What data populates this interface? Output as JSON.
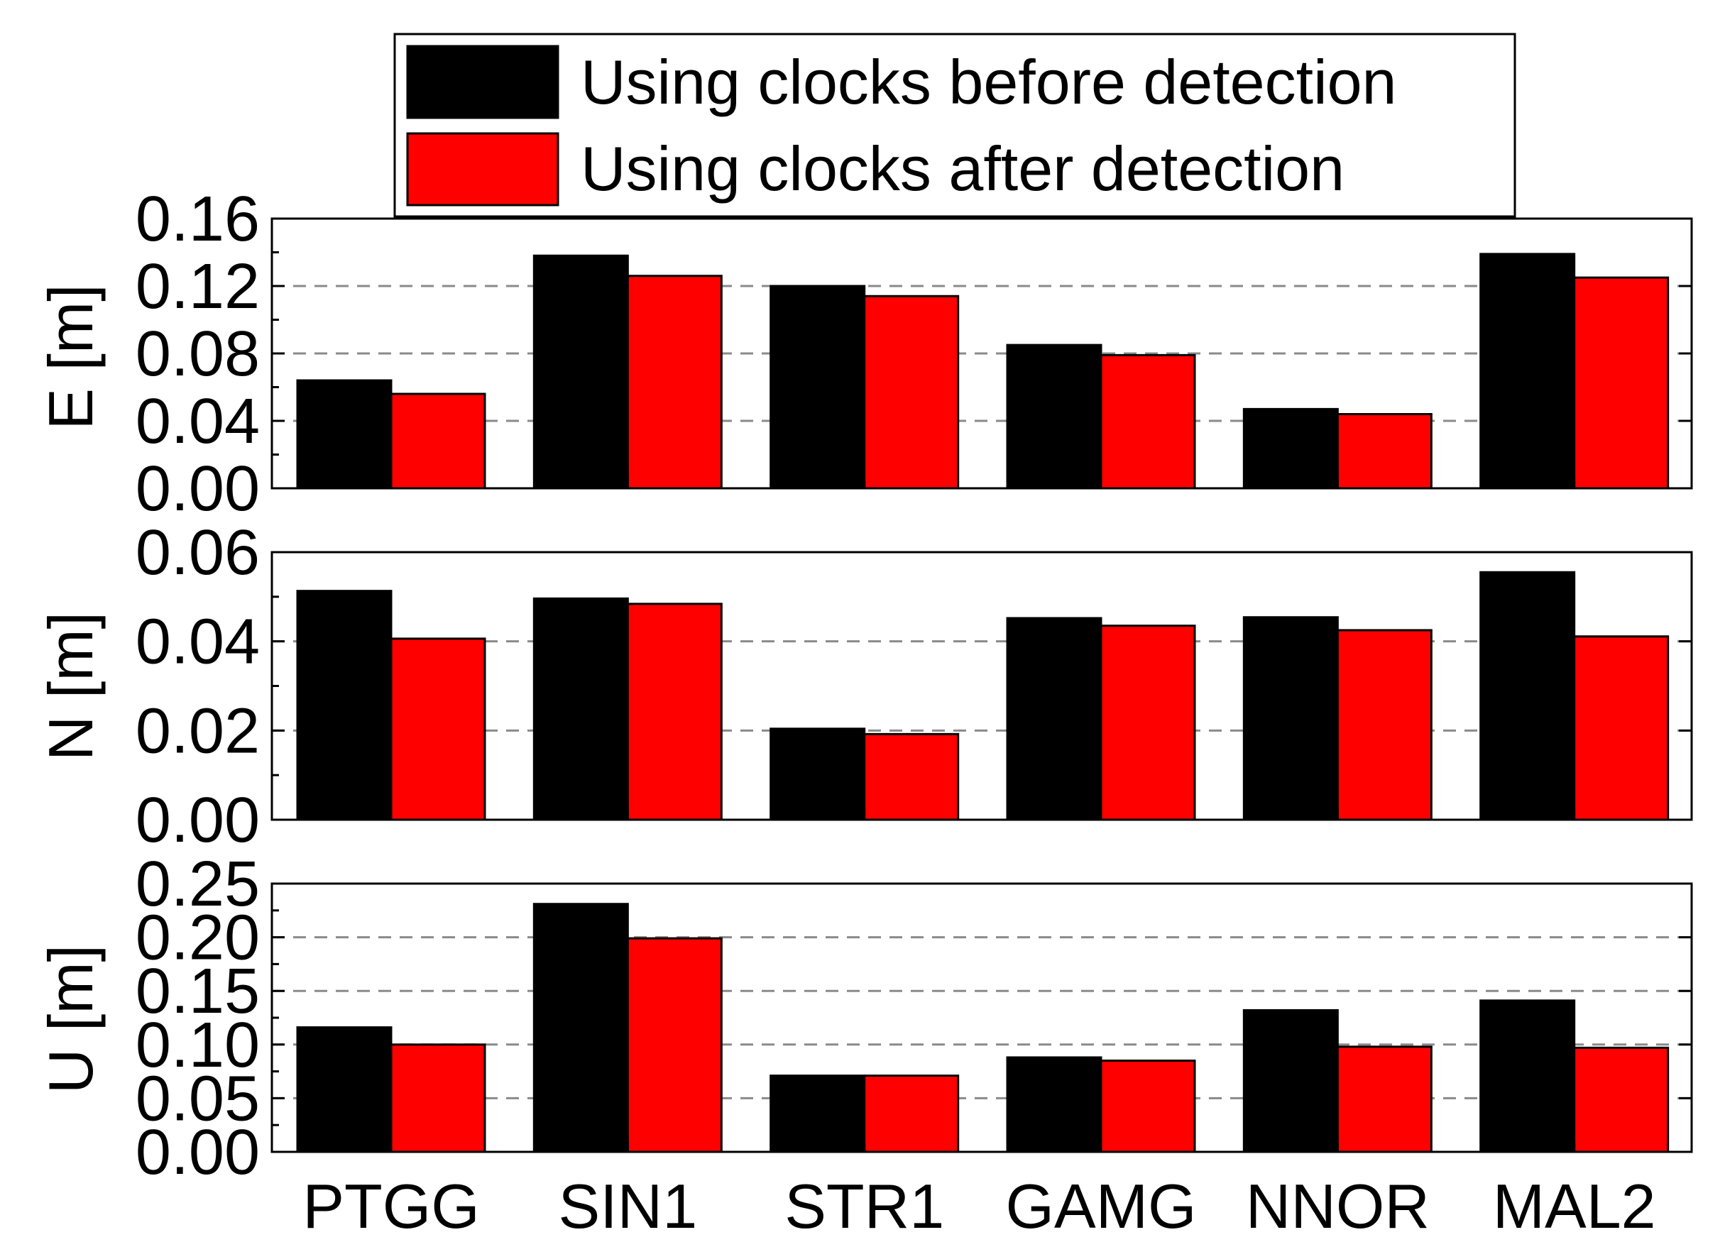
{
  "chart_data": {
    "type": "bar",
    "categories": [
      "PTGG",
      "SIN1",
      "STR1",
      "GAMG",
      "NNOR",
      "MAL2"
    ],
    "legend": [
      "Using clocks before detection",
      "Using clocks after detection"
    ],
    "legend_position": "top",
    "colors": {
      "before": "#000000",
      "after": "#ff0000",
      "grid": "#8a8a8a"
    },
    "panels": [
      {
        "ylabel": "E [m]",
        "ylim": [
          0,
          0.16
        ],
        "ticks": [
          "0.00",
          "0.04",
          "0.08",
          "0.12",
          "0.16"
        ],
        "tick_values": [
          0,
          0.04,
          0.08,
          0.12,
          0.16
        ],
        "grid": [
          0.04,
          0.08,
          0.12
        ],
        "series": [
          {
            "name": "Using clocks before detection",
            "values": [
              0.064,
              0.138,
              0.12,
              0.085,
              0.047,
              0.139
            ]
          },
          {
            "name": "Using clocks after detection",
            "values": [
              0.056,
              0.126,
              0.114,
              0.079,
              0.044,
              0.125
            ]
          }
        ]
      },
      {
        "ylabel": "N [m]",
        "ylim": [
          0,
          0.06
        ],
        "ticks": [
          "0.00",
          "0.02",
          "0.04",
          "0.06"
        ],
        "tick_values": [
          0,
          0.02,
          0.04,
          0.06
        ],
        "grid": [
          0.02,
          0.04
        ],
        "series": [
          {
            "name": "Using clocks before detection",
            "values": [
              0.0513,
              0.0496,
              0.0204,
              0.0452,
              0.0454,
              0.0555
            ]
          },
          {
            "name": "Using clocks after detection",
            "values": [
              0.0406,
              0.0484,
              0.0192,
              0.0435,
              0.0425,
              0.0411
            ]
          }
        ]
      },
      {
        "ylabel": "U [m]",
        "ylim": [
          0,
          0.25
        ],
        "ticks": [
          "0.00",
          "0.05",
          "0.10",
          "0.15",
          "0.20",
          "0.25"
        ],
        "tick_values": [
          0,
          0.05,
          0.1,
          0.15,
          0.2,
          0.25
        ],
        "grid": [
          0.05,
          0.1,
          0.15,
          0.2
        ],
        "series": [
          {
            "name": "Using clocks before detection",
            "values": [
              0.116,
              0.231,
              0.071,
              0.088,
              0.132,
              0.141
            ]
          },
          {
            "name": "Using clocks after detection",
            "values": [
              0.1,
              0.199,
              0.071,
              0.085,
              0.098,
              0.097
            ]
          }
        ]
      }
    ]
  }
}
